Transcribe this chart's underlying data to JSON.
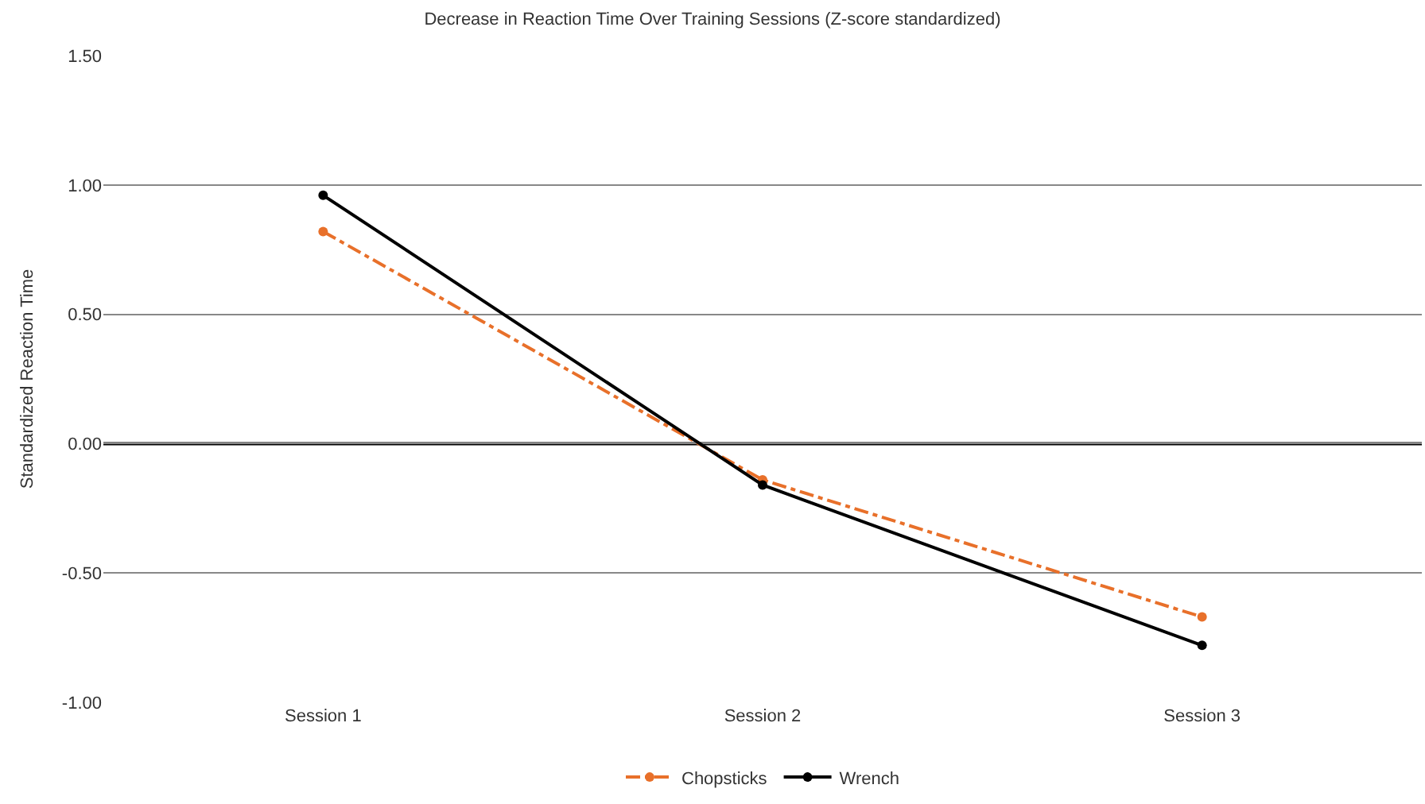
{
  "chart_data": {
    "type": "line",
    "title": "Decrease in Reaction Time Over Training Sessions (Z-score standardized)",
    "ylabel": "Standardized Reaction Time",
    "categories": [
      "Session 1",
      "Session 2",
      "Session 3"
    ],
    "series": [
      {
        "name": "Chopsticks",
        "color": "#e8702a",
        "values": [
          0.82,
          -0.14,
          -0.67
        ],
        "line_style": "dashdot"
      },
      {
        "name": "Wrench",
        "color": "#000000",
        "values": [
          0.96,
          -0.16,
          -0.78
        ],
        "line_style": "solid"
      }
    ],
    "ylim": [
      -1.0,
      1.5
    ],
    "yticks": [
      {
        "value": -1.0,
        "label": "-1.00"
      },
      {
        "value": -0.5,
        "label": "-0.50"
      },
      {
        "value": 0.0,
        "label": "0.00"
      },
      {
        "value": 0.5,
        "label": "0.50"
      },
      {
        "value": 1.0,
        "label": "1.00"
      },
      {
        "value": 1.5,
        "label": "1.50"
      }
    ],
    "ref_lines": [
      {
        "axis": "y",
        "value": 0.0,
        "color": "#000000"
      }
    ],
    "grid": "y",
    "legend": "bottom",
    "marker": "circle"
  }
}
